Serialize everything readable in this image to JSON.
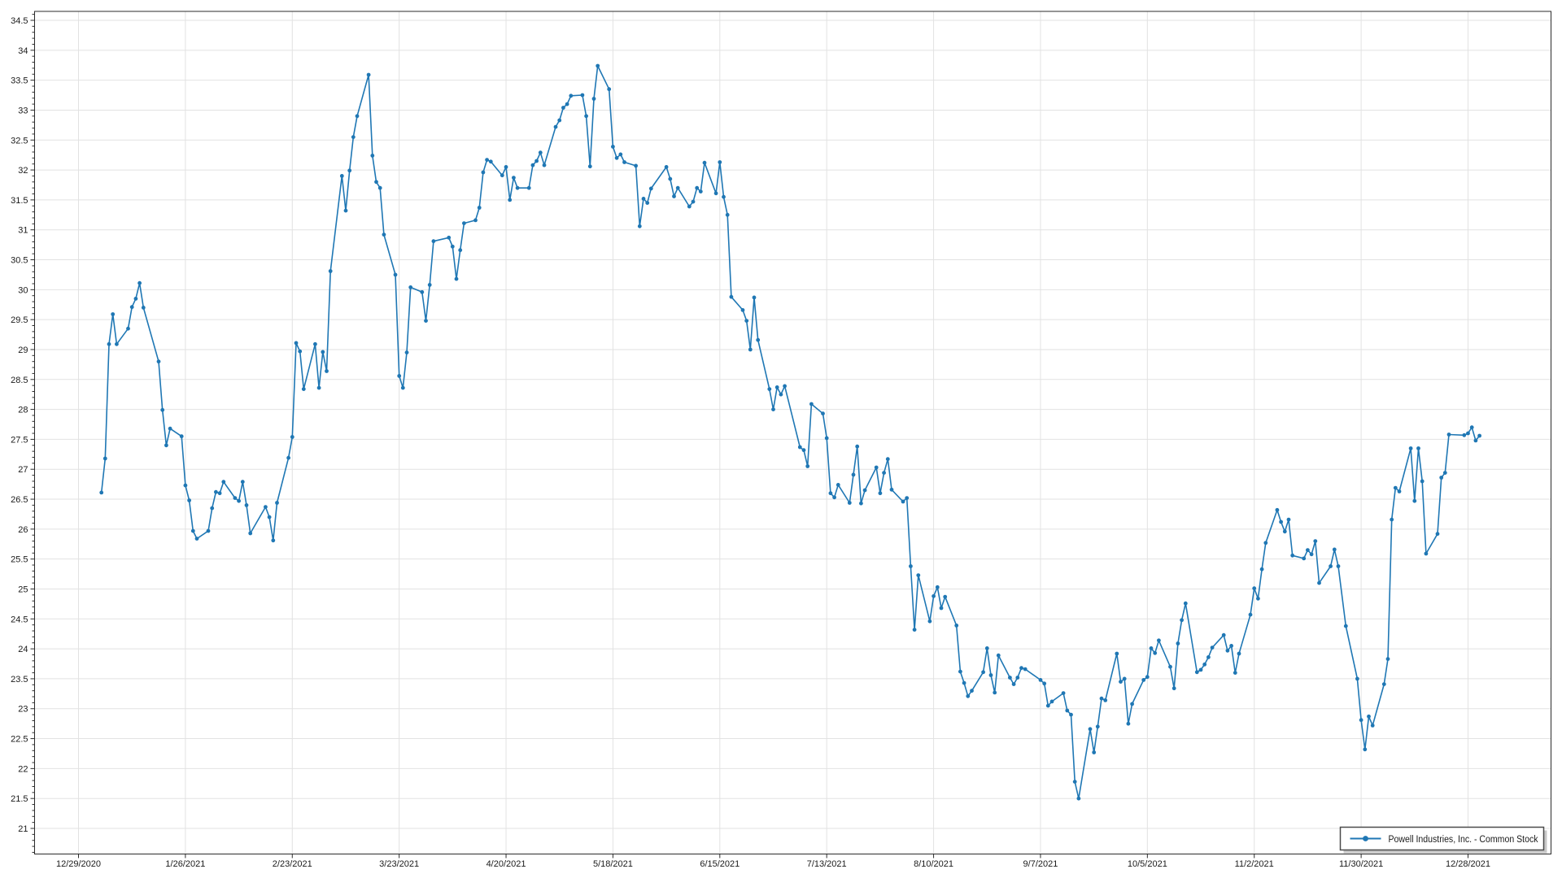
{
  "window": {
    "background": "#ffffff"
  },
  "chart_data": {
    "type": "line",
    "title": "",
    "xlabel": "",
    "ylabel": "",
    "grid": true,
    "legend_position": "bottom-right",
    "ylim": [
      21,
      34.5
    ],
    "y_tick_step": 0.5,
    "y_minor_tick_step": 0.1,
    "x_ticks": [
      "12/29/2020",
      "1/26/2021",
      "2/23/2021",
      "3/23/2021",
      "4/20/2021",
      "5/18/2021",
      "6/15/2021",
      "7/13/2021",
      "8/10/2021",
      "9/7/2021",
      "10/5/2021",
      "11/2/2021",
      "11/30/2021",
      "12/28/2021"
    ],
    "colors": {
      "line": "#1f77b4",
      "grid": "#e2e2e2",
      "axis": "#2b2b2b",
      "tick_label": "#1a1a1a",
      "legend_border": "#4a4a4a",
      "legend_shadow": "#9a9a9a",
      "background": "#ffffff"
    },
    "series": [
      {
        "name": "Powell Industries, Inc. - Common Stock",
        "color": "#1f77b4",
        "points": [
          [
            "1/4/2021",
            26.61
          ],
          [
            "1/5/2021",
            27.18
          ],
          [
            "1/6/2021",
            29.09
          ],
          [
            "1/7/2021",
            29.59
          ],
          [
            "1/8/2021",
            29.09
          ],
          [
            "1/11/2021",
            29.35
          ],
          [
            "1/12/2021",
            29.71
          ],
          [
            "1/13/2021",
            29.85
          ],
          [
            "1/14/2021",
            30.11
          ],
          [
            "1/15/2021",
            29.7
          ],
          [
            "1/19/2021",
            28.8
          ],
          [
            "1/20/2021",
            27.99
          ],
          [
            "1/21/2021",
            27.4
          ],
          [
            "1/22/2021",
            27.68
          ],
          [
            "1/25/2021",
            27.55
          ],
          [
            "1/26/2021",
            26.73
          ],
          [
            "1/27/2021",
            26.48
          ],
          [
            "1/28/2021",
            25.97
          ],
          [
            "1/29/2021",
            25.84
          ],
          [
            "2/1/2021",
            25.97
          ],
          [
            "2/2/2021",
            26.35
          ],
          [
            "2/3/2021",
            26.62
          ],
          [
            "2/4/2021",
            26.6
          ],
          [
            "2/5/2021",
            26.79
          ],
          [
            "2/8/2021",
            26.52
          ],
          [
            "2/9/2021",
            26.47
          ],
          [
            "2/10/2021",
            26.79
          ],
          [
            "2/11/2021",
            26.4
          ],
          [
            "2/12/2021",
            25.93
          ],
          [
            "2/16/2021",
            26.37
          ],
          [
            "2/17/2021",
            26.2
          ],
          [
            "2/18/2021",
            25.81
          ],
          [
            "2/19/2021",
            26.44
          ],
          [
            "2/22/2021",
            27.19
          ],
          [
            "2/23/2021",
            27.54
          ],
          [
            "2/24/2021",
            29.11
          ],
          [
            "2/25/2021",
            28.97
          ],
          [
            "2/26/2021",
            28.34
          ],
          [
            "3/1/2021",
            29.09
          ],
          [
            "3/2/2021",
            28.36
          ],
          [
            "3/3/2021",
            28.96
          ],
          [
            "3/4/2021",
            28.64
          ],
          [
            "3/5/2021",
            30.31
          ],
          [
            "3/8/2021",
            31.9
          ],
          [
            "3/9/2021",
            31.32
          ],
          [
            "3/10/2021",
            31.99
          ],
          [
            "3/11/2021",
            32.55
          ],
          [
            "3/12/2021",
            32.9
          ],
          [
            "3/15/2021",
            33.59
          ],
          [
            "3/16/2021",
            32.24
          ],
          [
            "3/17/2021",
            31.8
          ],
          [
            "3/18/2021",
            31.7
          ],
          [
            "3/19/2021",
            30.92
          ],
          [
            "3/22/2021",
            30.25
          ],
          [
            "3/23/2021",
            28.56
          ],
          [
            "3/24/2021",
            28.36
          ],
          [
            "3/25/2021",
            28.95
          ],
          [
            "3/26/2021",
            30.04
          ],
          [
            "3/29/2021",
            29.96
          ],
          [
            "3/30/2021",
            29.48
          ],
          [
            "3/31/2021",
            30.08
          ],
          [
            "4/1/2021",
            30.81
          ],
          [
            "4/5/2021",
            30.87
          ],
          [
            "4/6/2021",
            30.72
          ],
          [
            "4/7/2021",
            30.18
          ],
          [
            "4/8/2021",
            30.66
          ],
          [
            "4/9/2021",
            31.11
          ],
          [
            "4/12/2021",
            31.16
          ],
          [
            "4/13/2021",
            31.37
          ],
          [
            "4/14/2021",
            31.96
          ],
          [
            "4/15/2021",
            32.17
          ],
          [
            "4/16/2021",
            32.14
          ],
          [
            "4/19/2021",
            31.91
          ],
          [
            "4/20/2021",
            32.05
          ],
          [
            "4/21/2021",
            31.5
          ],
          [
            "4/22/2021",
            31.87
          ],
          [
            "4/23/2021",
            31.7
          ],
          [
            "4/26/2021",
            31.7
          ],
          [
            "4/27/2021",
            32.08
          ],
          [
            "4/28/2021",
            32.15
          ],
          [
            "4/29/2021",
            32.29
          ],
          [
            "4/30/2021",
            32.08
          ],
          [
            "5/3/2021",
            32.72
          ],
          [
            "5/4/2021",
            32.83
          ],
          [
            "5/5/2021",
            33.04
          ],
          [
            "5/6/2021",
            33.1
          ],
          [
            "5/7/2021",
            33.24
          ],
          [
            "5/10/2021",
            33.25
          ],
          [
            "5/11/2021",
            32.9
          ],
          [
            "5/12/2021",
            32.06
          ],
          [
            "5/13/2021",
            33.19
          ],
          [
            "5/14/2021",
            33.74
          ],
          [
            "5/17/2021",
            33.35
          ],
          [
            "5/18/2021",
            32.39
          ],
          [
            "5/19/2021",
            32.2
          ],
          [
            "5/20/2021",
            32.26
          ],
          [
            "5/21/2021",
            32.13
          ],
          [
            "5/24/2021",
            32.07
          ],
          [
            "5/25/2021",
            31.06
          ],
          [
            "5/26/2021",
            31.52
          ],
          [
            "5/27/2021",
            31.45
          ],
          [
            "5/28/2021",
            31.69
          ],
          [
            "6/1/2021",
            32.05
          ],
          [
            "6/2/2021",
            31.85
          ],
          [
            "6/3/2021",
            31.56
          ],
          [
            "6/4/2021",
            31.7
          ],
          [
            "6/7/2021",
            31.39
          ],
          [
            "6/8/2021",
            31.47
          ],
          [
            "6/9/2021",
            31.7
          ],
          [
            "6/10/2021",
            31.64
          ],
          [
            "6/11/2021",
            32.12
          ],
          [
            "6/14/2021",
            31.61
          ],
          [
            "6/15/2021",
            32.13
          ],
          [
            "6/16/2021",
            31.55
          ],
          [
            "6/17/2021",
            31.25
          ],
          [
            "6/18/2021",
            29.88
          ],
          [
            "6/21/2021",
            29.66
          ],
          [
            "6/22/2021",
            29.48
          ],
          [
            "6/23/2021",
            29.0
          ],
          [
            "6/24/2021",
            29.87
          ],
          [
            "6/25/2021",
            29.16
          ],
          [
            "6/28/2021",
            28.34
          ],
          [
            "6/29/2021",
            28.0
          ],
          [
            "6/30/2021",
            28.37
          ],
          [
            "7/1/2021",
            28.25
          ],
          [
            "7/2/2021",
            28.39
          ],
          [
            "7/6/2021",
            27.37
          ],
          [
            "7/7/2021",
            27.32
          ],
          [
            "7/8/2021",
            27.05
          ],
          [
            "7/9/2021",
            28.09
          ],
          [
            "7/12/2021",
            27.93
          ],
          [
            "7/13/2021",
            27.52
          ],
          [
            "7/14/2021",
            26.6
          ],
          [
            "7/15/2021",
            26.53
          ],
          [
            "7/16/2021",
            26.74
          ],
          [
            "7/19/2021",
            26.44
          ],
          [
            "7/20/2021",
            26.91
          ],
          [
            "7/21/2021",
            27.38
          ],
          [
            "7/22/2021",
            26.43
          ],
          [
            "7/23/2021",
            26.65
          ],
          [
            "7/26/2021",
            27.03
          ],
          [
            "7/27/2021",
            26.6
          ],
          [
            "7/28/2021",
            26.94
          ],
          [
            "7/29/2021",
            27.17
          ],
          [
            "7/30/2021",
            26.66
          ],
          [
            "8/2/2021",
            26.46
          ],
          [
            "8/3/2021",
            26.52
          ],
          [
            "8/4/2021",
            25.38
          ],
          [
            "8/5/2021",
            24.32
          ],
          [
            "8/6/2021",
            25.23
          ],
          [
            "8/9/2021",
            24.46
          ],
          [
            "8/10/2021",
            24.88
          ],
          [
            "8/11/2021",
            25.03
          ],
          [
            "8/12/2021",
            24.68
          ],
          [
            "8/13/2021",
            24.87
          ],
          [
            "8/16/2021",
            24.39
          ],
          [
            "8/17/2021",
            23.62
          ],
          [
            "8/18/2021",
            23.43
          ],
          [
            "8/19/2021",
            23.21
          ],
          [
            "8/20/2021",
            23.3
          ],
          [
            "8/23/2021",
            23.61
          ],
          [
            "8/24/2021",
            24.01
          ],
          [
            "8/25/2021",
            23.56
          ],
          [
            "8/26/2021",
            23.27
          ],
          [
            "8/27/2021",
            23.89
          ],
          [
            "8/30/2021",
            23.52
          ],
          [
            "8/31/2021",
            23.41
          ],
          [
            "9/1/2021",
            23.52
          ],
          [
            "9/2/2021",
            23.68
          ],
          [
            "9/3/2021",
            23.66
          ],
          [
            "9/7/2021",
            23.48
          ],
          [
            "9/8/2021",
            23.42
          ],
          [
            "9/9/2021",
            23.05
          ],
          [
            "9/10/2021",
            23.12
          ],
          [
            "9/13/2021",
            23.26
          ],
          [
            "9/14/2021",
            22.97
          ],
          [
            "9/15/2021",
            22.9
          ],
          [
            "9/16/2021",
            21.78
          ],
          [
            "9/17/2021",
            21.5
          ],
          [
            "9/20/2021",
            22.66
          ],
          [
            "9/21/2021",
            22.27
          ],
          [
            "9/22/2021",
            22.7
          ],
          [
            "9/23/2021",
            23.17
          ],
          [
            "9/24/2021",
            23.14
          ],
          [
            "9/27/2021",
            23.92
          ],
          [
            "9/28/2021",
            23.45
          ],
          [
            "9/29/2021",
            23.5
          ],
          [
            "9/30/2021",
            22.75
          ],
          [
            "10/1/2021",
            23.08
          ],
          [
            "10/4/2021",
            23.48
          ],
          [
            "10/5/2021",
            23.53
          ],
          [
            "10/6/2021",
            24.01
          ],
          [
            "10/7/2021",
            23.93
          ],
          [
            "10/8/2021",
            24.14
          ],
          [
            "10/11/2021",
            23.7
          ],
          [
            "10/12/2021",
            23.34
          ],
          [
            "10/13/2021",
            24.09
          ],
          [
            "10/14/2021",
            24.48
          ],
          [
            "10/15/2021",
            24.76
          ],
          [
            "10/18/2021",
            23.61
          ],
          [
            "10/19/2021",
            23.65
          ],
          [
            "10/20/2021",
            23.74
          ],
          [
            "10/21/2021",
            23.86
          ],
          [
            "10/22/2021",
            24.02
          ],
          [
            "10/25/2021",
            24.23
          ],
          [
            "10/26/2021",
            23.97
          ],
          [
            "10/27/2021",
            24.05
          ],
          [
            "10/28/2021",
            23.6
          ],
          [
            "10/29/2021",
            23.92
          ],
          [
            "11/1/2021",
            24.57
          ],
          [
            "11/2/2021",
            25.01
          ],
          [
            "11/3/2021",
            24.84
          ],
          [
            "11/4/2021",
            25.33
          ],
          [
            "11/5/2021",
            25.77
          ],
          [
            "11/8/2021",
            26.32
          ],
          [
            "11/9/2021",
            26.12
          ],
          [
            "11/10/2021",
            25.96
          ],
          [
            "11/11/2021",
            26.16
          ],
          [
            "11/12/2021",
            25.56
          ],
          [
            "11/15/2021",
            25.51
          ],
          [
            "11/16/2021",
            25.65
          ],
          [
            "11/17/2021",
            25.58
          ],
          [
            "11/18/2021",
            25.8
          ],
          [
            "11/19/2021",
            25.1
          ],
          [
            "11/22/2021",
            25.38
          ],
          [
            "11/23/2021",
            25.66
          ],
          [
            "11/24/2021",
            25.38
          ],
          [
            "11/26/2021",
            24.38
          ],
          [
            "11/29/2021",
            23.5
          ],
          [
            "11/30/2021",
            22.81
          ],
          [
            "12/1/2021",
            22.32
          ],
          [
            "12/2/2021",
            22.87
          ],
          [
            "12/3/2021",
            22.72
          ],
          [
            "12/6/2021",
            23.41
          ],
          [
            "12/7/2021",
            23.83
          ],
          [
            "12/8/2021",
            26.16
          ],
          [
            "12/9/2021",
            26.69
          ],
          [
            "12/10/2021",
            26.63
          ],
          [
            "12/13/2021",
            27.35
          ],
          [
            "12/14/2021",
            26.47
          ],
          [
            "12/15/2021",
            27.35
          ],
          [
            "12/16/2021",
            26.8
          ],
          [
            "12/17/2021",
            25.59
          ],
          [
            "12/20/2021",
            25.92
          ],
          [
            "12/21/2021",
            26.86
          ],
          [
            "12/22/2021",
            26.94
          ],
          [
            "12/23/2021",
            27.58
          ],
          [
            "12/27/2021",
            27.57
          ],
          [
            "12/28/2021",
            27.6
          ],
          [
            "12/29/2021",
            27.7
          ],
          [
            "12/30/2021",
            27.48
          ],
          [
            "12/31/2021",
            27.56
          ]
        ]
      }
    ]
  }
}
